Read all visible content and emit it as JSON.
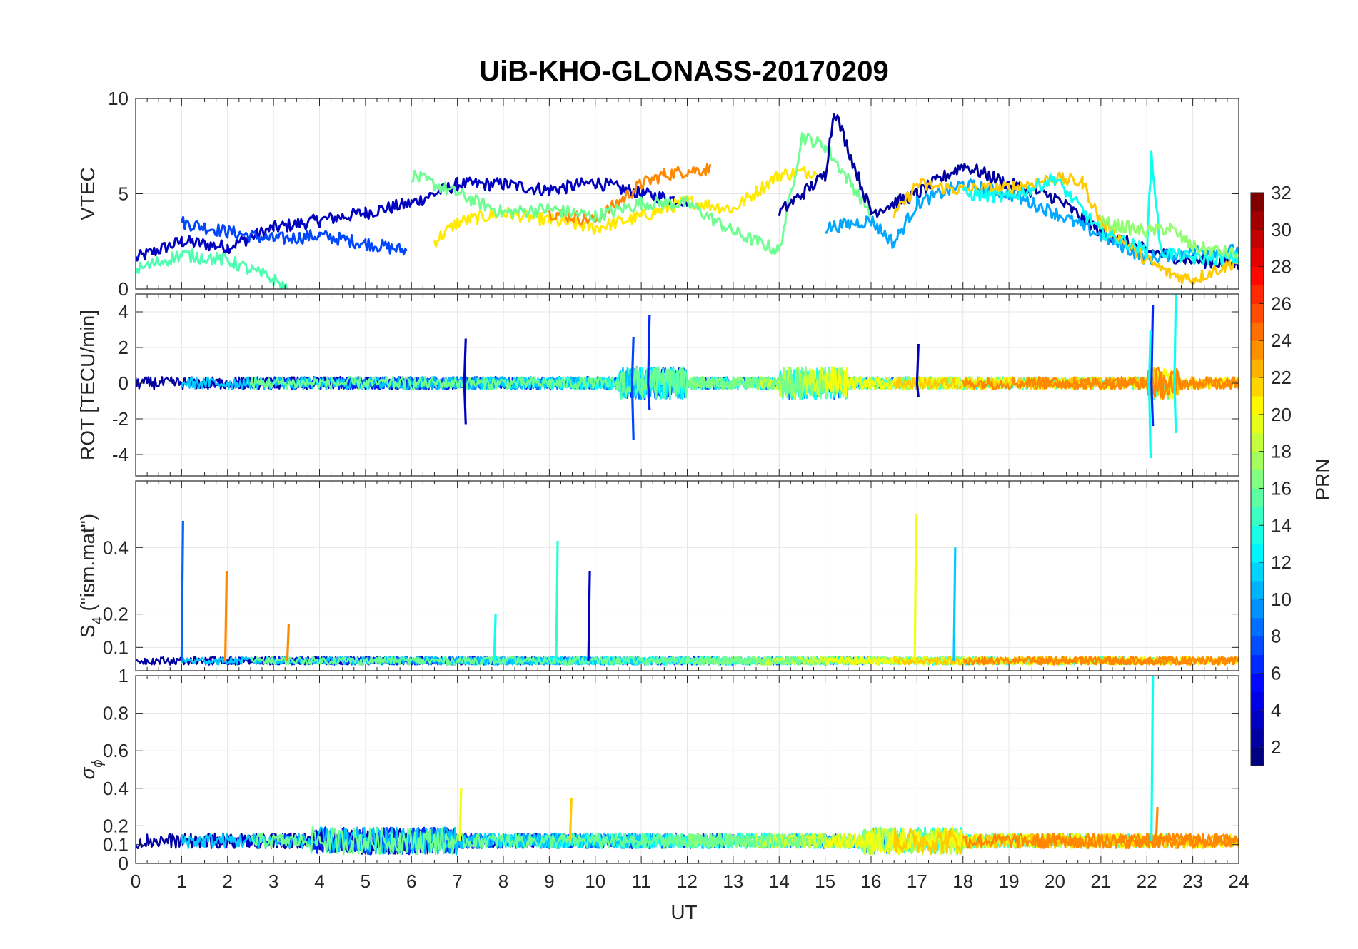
{
  "chart_data": {
    "type": "line",
    "title": "UiB-KHO-GLONASS-20170209",
    "xlabel": "UT",
    "xlim": [
      0,
      24
    ],
    "x_ticks": [
      "0",
      "1",
      "2",
      "3",
      "4",
      "5",
      "6",
      "7",
      "8",
      "9",
      "10",
      "11",
      "12",
      "13",
      "14",
      "15",
      "16",
      "17",
      "18",
      "19",
      "20",
      "21",
      "22",
      "23",
      "24"
    ],
    "grid": true,
    "colorbar": {
      "label": "PRN",
      "colormap": "jet",
      "range": [
        1,
        32
      ],
      "ticks": [
        "2",
        "4",
        "6",
        "8",
        "10",
        "12",
        "14",
        "16",
        "18",
        "20",
        "22",
        "24",
        "26",
        "28",
        "30",
        "32"
      ]
    },
    "panels": [
      {
        "ylabel": "VTEC",
        "ylim": [
          0,
          10
        ],
        "y_ticks": [
          "0",
          "5",
          "10"
        ],
        "series": [
          {
            "prn": 3,
            "x": [
              0.0,
              1.0,
              2.0,
              3.0,
              4.0,
              5.0,
              6.0,
              7.0,
              8.0,
              9.0,
              10.0,
              11.0,
              12.0
            ],
            "values": [
              1.6,
              2.5,
              2.2,
              3.2,
              3.6,
              4.0,
              4.5,
              5.5,
              5.5,
              5.2,
              5.6,
              5.0,
              4.6
            ]
          },
          {
            "prn": 7,
            "x": [
              1.0,
              2.0,
              3.0,
              4.0,
              5.0,
              5.9
            ],
            "values": [
              3.5,
              3.0,
              2.6,
              2.8,
              2.4,
              2.0
            ]
          },
          {
            "prn": 21,
            "x": [
              6.5,
              7.0,
              8.0,
              9.0,
              10.0,
              11.0,
              12.0,
              13.0,
              14.0,
              14.8
            ],
            "values": [
              2.5,
              3.5,
              4.0,
              3.6,
              3.2,
              3.8,
              4.6,
              4.2,
              6.0,
              6.2
            ]
          },
          {
            "prn": 24,
            "x": [
              9.0,
              10.0,
              11.0,
              11.5,
              12.0,
              12.5
            ],
            "values": [
              4.0,
              3.6,
              5.5,
              6.0,
              6.2,
              6.3
            ]
          },
          {
            "prn": 16,
            "x": [
              6.0,
              7.0,
              8.0,
              9.0,
              10.0,
              11.0,
              12.0,
              13.0,
              14.0,
              14.5,
              15.0,
              16.0
            ],
            "values": [
              6.0,
              5.0,
              4.0,
              4.2,
              3.8,
              4.5,
              4.5,
              3.0,
              2.0,
              8.0,
              7.5,
              4.0
            ]
          },
          {
            "prn": 2,
            "x": [
              14.0,
              15.0,
              15.2,
              16.0,
              17.0,
              18.0,
              19.0,
              20.0,
              21.0,
              22.0,
              23.0,
              24.0
            ],
            "values": [
              4.0,
              6.0,
              9.4,
              4.0,
              5.0,
              6.5,
              5.5,
              4.8,
              3.0,
              2.0,
              1.5,
              1.3
            ]
          },
          {
            "prn": 10,
            "x": [
              15.0,
              16.0,
              16.5,
              17.0,
              18.0,
              19.0,
              20.0,
              21.0,
              22.0,
              23.0,
              24.0
            ],
            "values": [
              3.2,
              3.6,
              2.4,
              4.5,
              5.5,
              5.0,
              4.0,
              2.8,
              1.6,
              2.0,
              2.0
            ]
          },
          {
            "prn": 22,
            "x": [
              16.5,
              17.0,
              18.0,
              19.0,
              20.0,
              20.6,
              21.0,
              22.0,
              22.5,
              23.0,
              24.0
            ],
            "values": [
              3.8,
              5.5,
              5.2,
              5.3,
              5.8,
              5.6,
              3.5,
              1.5,
              0.8,
              0.5,
              1.5
            ]
          },
          {
            "prn": 13,
            "x": [
              18.0,
              19.0,
              20.0,
              21.0,
              22.0,
              22.1,
              22.3,
              23.0,
              24.0
            ],
            "values": [
              5.0,
              4.8,
              5.8,
              3.0,
              2.0,
              7.1,
              2.0,
              1.6,
              1.6
            ]
          },
          {
            "prn": 15,
            "x": [
              0.0,
              1.0,
              2.0,
              3.0,
              3.3
            ],
            "values": [
              1.0,
              1.8,
              1.5,
              0.5,
              0.0
            ]
          },
          {
            "prn": 17,
            "x": [
              21.0,
              22.0,
              22.5,
              23.0,
              24.0
            ],
            "values": [
              3.5,
              3.0,
              3.2,
              2.2,
              1.8
            ]
          }
        ]
      },
      {
        "ylabel": "ROT [TECU/min]",
        "ylim": [
          -5.2,
          5
        ],
        "y_ticks": [
          "-4",
          "-2",
          "0",
          "2",
          "4"
        ],
        "spikes": [
          {
            "prn": 3,
            "x": 7.15,
            "values": [
              2.5,
              -2.3
            ]
          },
          {
            "prn": 7,
            "x": 10.8,
            "values": [
              2.6,
              -3.2
            ]
          },
          {
            "prn": 6,
            "x": 11.15,
            "values": [
              3.8,
              -1.5
            ]
          },
          {
            "prn": 6,
            "x": 22.1,
            "values": [
              4.4,
              -2.4
            ]
          },
          {
            "prn": 13,
            "x": 22.05,
            "values": [
              3.0,
              -4.2
            ]
          },
          {
            "prn": 13,
            "x": 22.6,
            "values": [
              5.0,
              -2.8
            ]
          },
          {
            "prn": 3,
            "x": 17.0,
            "values": [
              2.2,
              -0.8
            ]
          }
        ]
      },
      {
        "ylabel": "S4 (\"ism.mat\")",
        "ylabel_main": "S",
        "ylabel_sub": "4",
        "ylabel_rest": " (\"ism.mat\")",
        "ylim": [
          0.03,
          0.6
        ],
        "y_ticks": [
          "0.1",
          "0.2",
          "0.4"
        ],
        "spikes": [
          {
            "prn": 8,
            "x": 1.0,
            "values": [
              0.48
            ]
          },
          {
            "prn": 24,
            "x": 1.95,
            "values": [
              0.33
            ]
          },
          {
            "prn": 24,
            "x": 3.3,
            "values": [
              0.17
            ]
          },
          {
            "prn": 13,
            "x": 7.8,
            "values": [
              0.2
            ]
          },
          {
            "prn": 14,
            "x": 9.15,
            "values": [
              0.42
            ]
          },
          {
            "prn": 3,
            "x": 9.85,
            "values": [
              0.33
            ]
          },
          {
            "prn": 20,
            "x": 16.95,
            "values": [
              0.5
            ]
          },
          {
            "prn": 11,
            "x": 17.8,
            "values": [
              0.4
            ]
          }
        ]
      },
      {
        "ylabel": "σϕ",
        "ylabel_main": "σ",
        "ylabel_sub": "ϕ",
        "ylim": [
          0,
          1
        ],
        "y_ticks": [
          "0",
          "0.1",
          "0.2",
          "0.4",
          "0.6",
          "0.8",
          "1"
        ],
        "spikes": [
          {
            "prn": 20,
            "x": 7.05,
            "values": [
              0.4
            ]
          },
          {
            "prn": 22,
            "x": 9.45,
            "values": [
              0.35
            ]
          },
          {
            "prn": 13,
            "x": 22.1,
            "values": [
              1.0
            ]
          },
          {
            "prn": 24,
            "x": 22.2,
            "values": [
              0.3
            ]
          }
        ]
      }
    ]
  }
}
